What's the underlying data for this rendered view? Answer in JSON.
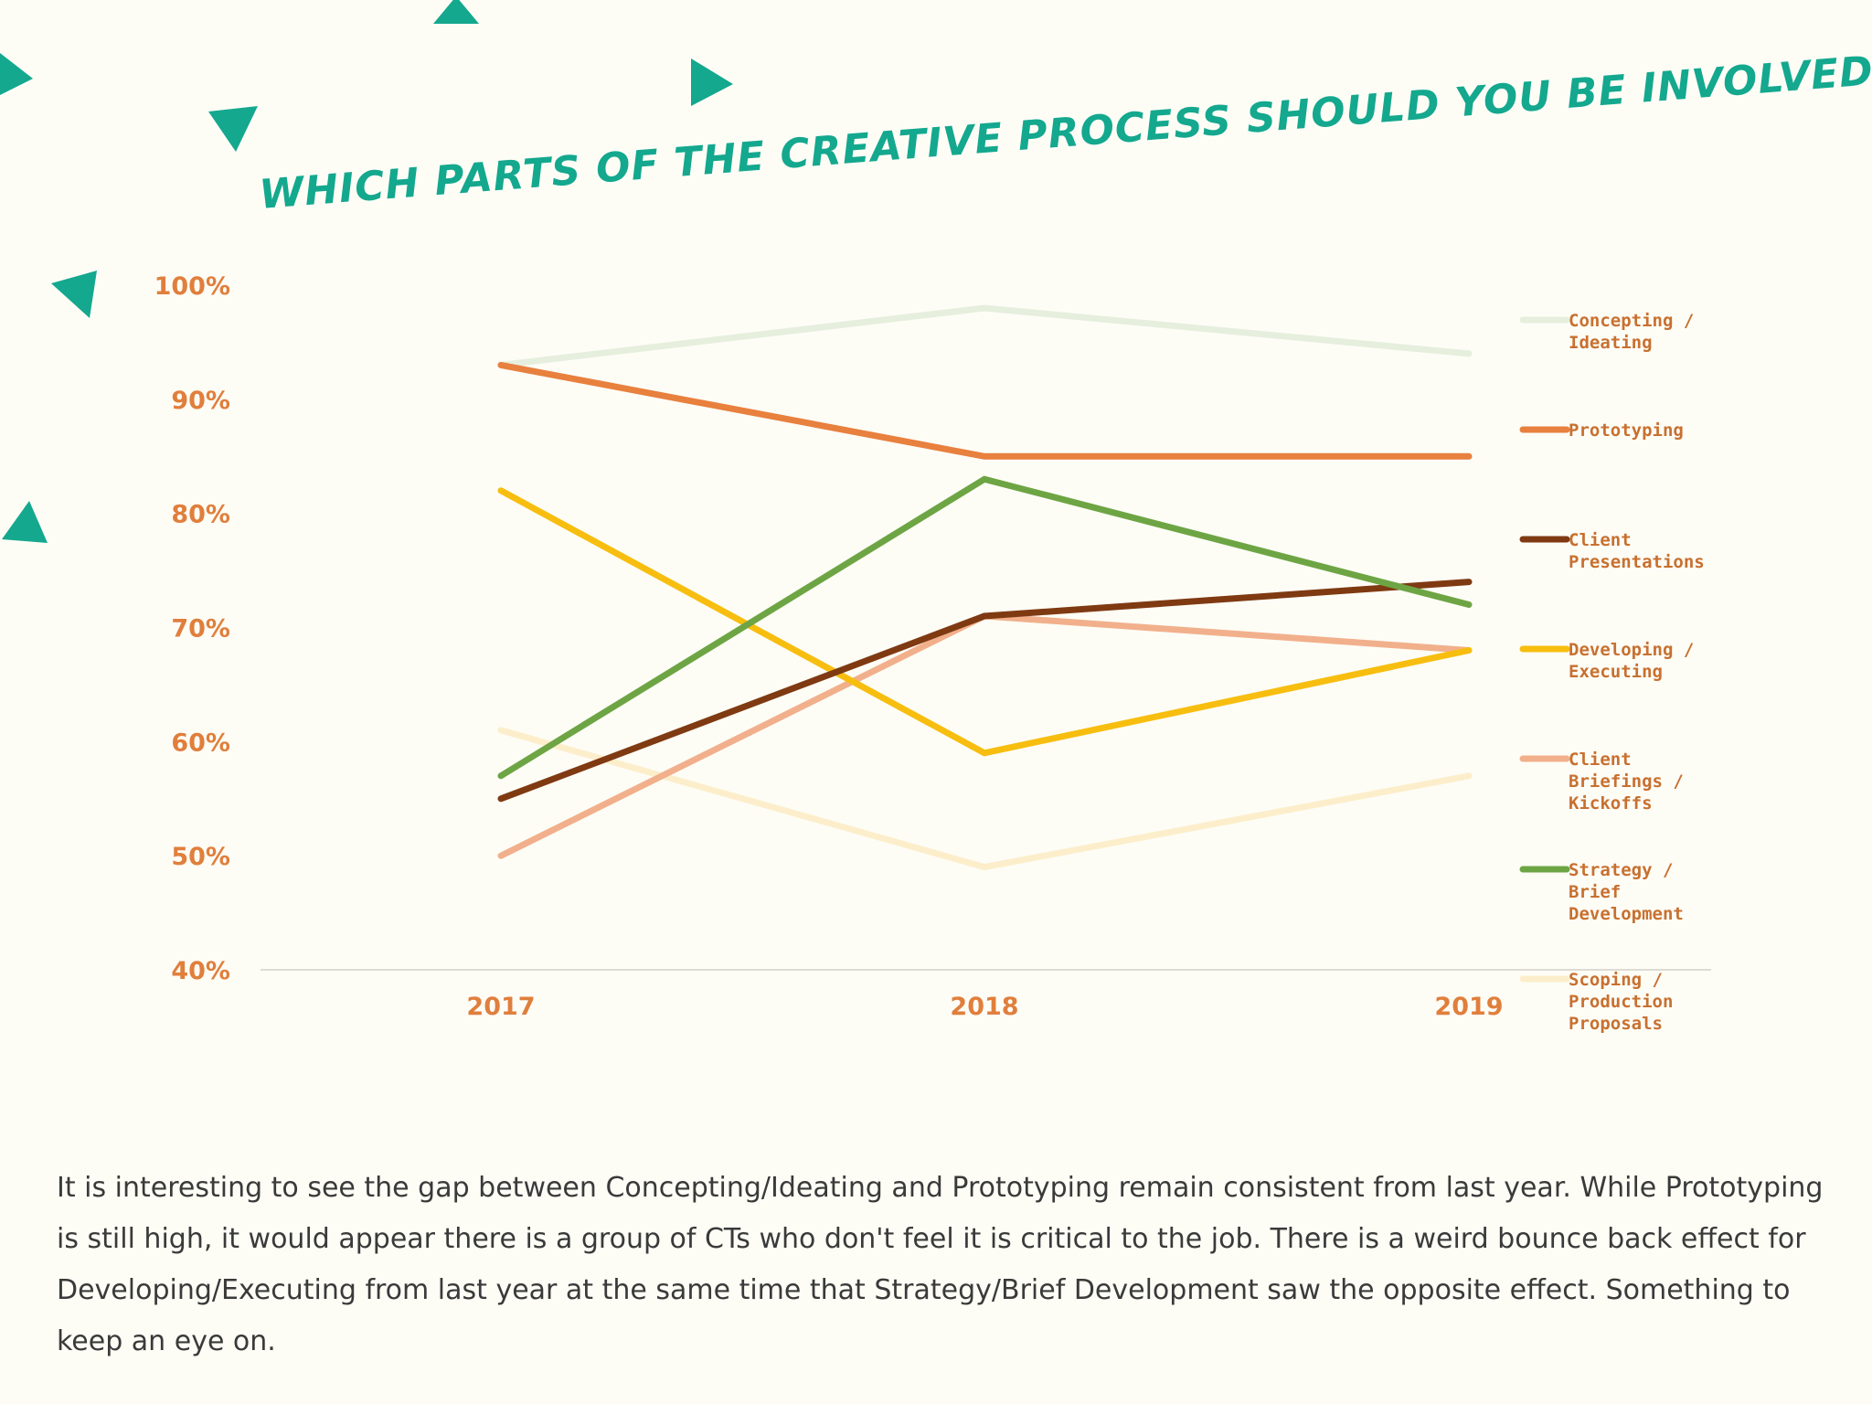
{
  "chart_data": {
    "type": "line",
    "title": "WHICH PARTS OF THE CREATIVE PROCESS SHOULD YOU BE INVOLVED IN?",
    "x": [
      "2017",
      "2018",
      "2019"
    ],
    "ylim": [
      40,
      100
    ],
    "yticks": [
      "100%",
      "90%",
      "80%",
      "70%",
      "60%",
      "50%",
      "40%"
    ],
    "ytick_values": [
      100,
      90,
      80,
      70,
      60,
      50,
      40
    ],
    "grid": false,
    "legend_position": "right",
    "series": [
      {
        "name": "Concepting / Ideating",
        "legend_lines": [
          "Concepting /",
          "Ideating"
        ],
        "color": "#e6efdd",
        "values": [
          93,
          98,
          94
        ]
      },
      {
        "name": "Prototyping",
        "legend_lines": [
          "Prototyping"
        ],
        "color": "#e8803e",
        "values": [
          93,
          85,
          85
        ]
      },
      {
        "name": "Client Presentations",
        "legend_lines": [
          "Client",
          "Presentations"
        ],
        "color": "#7f3a12",
        "values": [
          55,
          71,
          74
        ]
      },
      {
        "name": "Developing / Executing",
        "legend_lines": [
          "Developing /",
          "Executing"
        ],
        "color": "#f7be10",
        "values": [
          82,
          59,
          68
        ]
      },
      {
        "name": "Client Briefings / Kickoffs",
        "legend_lines": [
          "Client",
          "Briefings /",
          "Kickoffs"
        ],
        "color": "#f1b08b",
        "values": [
          50,
          71,
          68
        ]
      },
      {
        "name": "Strategy / Brief Development",
        "legend_lines": [
          "Strategy /",
          "Brief",
          "Development"
        ],
        "color": "#6ea544",
        "values": [
          57,
          83,
          72
        ]
      },
      {
        "name": "Scoping / Production Proposals",
        "legend_lines": [
          "Scoping /",
          "Production",
          "Proposals"
        ],
        "color": "#fdeecb",
        "values": [
          61,
          49,
          57
        ]
      }
    ]
  },
  "colors": {
    "accent": "#14a88e",
    "axis_text": "#e07f3c",
    "legend_text": "#c8702f",
    "background": "#fdfdf6",
    "body_text": "#3a3a3a"
  },
  "decorations": {
    "shape": "triangle",
    "color": "#14a88e",
    "count": 7
  },
  "commentary": "It is interesting to see the gap between Concepting/Ideating and Prototyping remain consistent from last year. While Prototyping is still high, it would appear there is a group of CTs who don't feel it is critical to the job. There is a weird bounce back effect for Developing/Executing from last year at the same time that Strategy/Brief Development saw the opposite effect. Something to keep an eye on."
}
